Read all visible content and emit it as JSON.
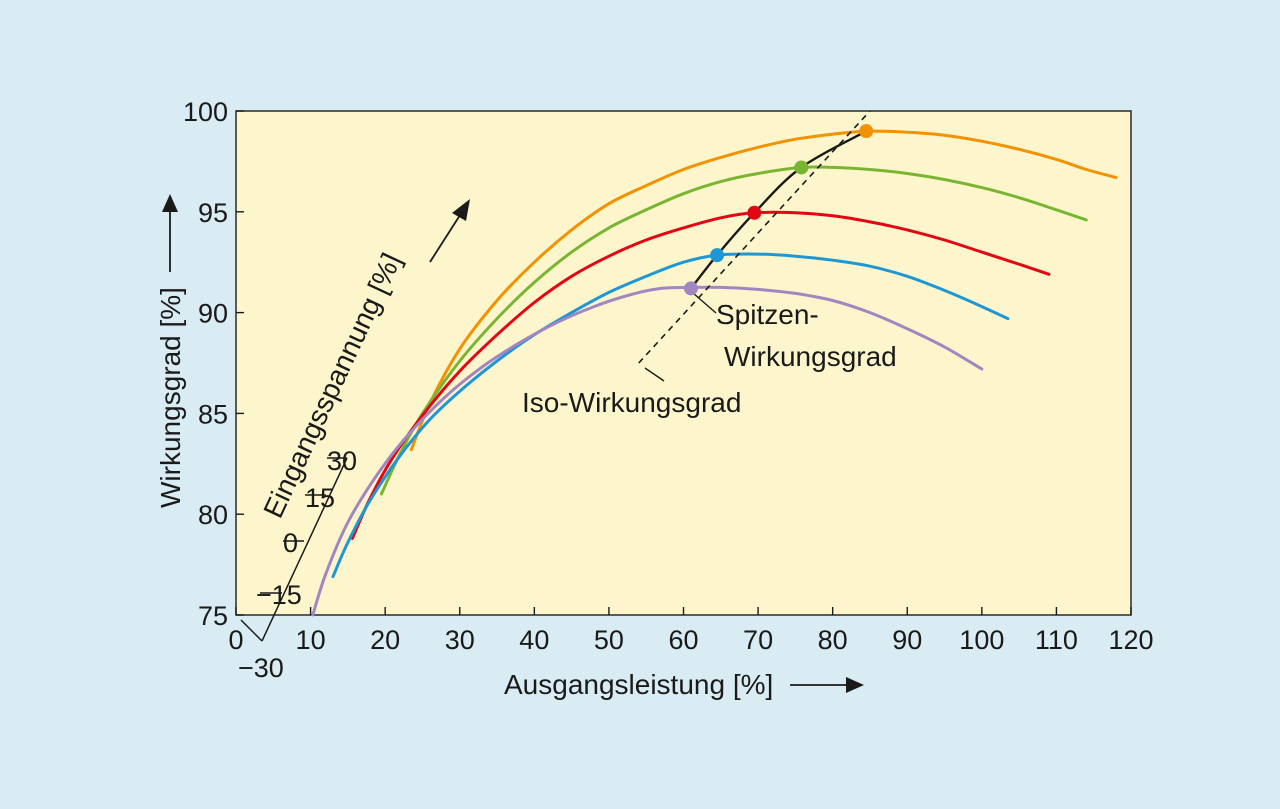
{
  "chart_data": {
    "type": "line",
    "xlabel": "Ausgangsleistung [%]",
    "ylabel": "Wirkungsgrad [%]",
    "xlim": [
      0,
      120
    ],
    "ylim": [
      75,
      100
    ],
    "x_ticks": [
      "0",
      "10",
      "20",
      "30",
      "40",
      "50",
      "60",
      "70",
      "80",
      "90",
      "100",
      "110",
      "120"
    ],
    "y_ticks": [
      "75",
      "80",
      "85",
      "90",
      "95",
      "100"
    ],
    "grid": false,
    "diagonal_axis": {
      "label": "Eingangsspannung [%]",
      "ticks": [
        "−30",
        "−15",
        "0",
        "15",
        "30"
      ]
    },
    "series": [
      {
        "color": "#f39200",
        "x": [
          23.5,
          26,
          30,
          35,
          40,
          45,
          50,
          55,
          60,
          65,
          70,
          75,
          80,
          84.5,
          90,
          95,
          100,
          105,
          110,
          114,
          118
        ],
        "y": [
          83.2,
          85.5,
          88.2,
          90.6,
          92.5,
          94.1,
          95.4,
          96.3,
          97.1,
          97.7,
          98.2,
          98.6,
          98.85,
          99.0,
          98.95,
          98.8,
          98.5,
          98.1,
          97.6,
          97.1,
          96.7
        ]
      },
      {
        "color": "#7ab532",
        "x": [
          19.5,
          22,
          25,
          30,
          35,
          40,
          45,
          50,
          55,
          60,
          65,
          70,
          75.8,
          80,
          85,
          90,
          95,
          100,
          105,
          110,
          114
        ],
        "y": [
          81.0,
          83.0,
          85.0,
          87.6,
          89.7,
          91.5,
          93.0,
          94.2,
          95.1,
          95.9,
          96.5,
          96.9,
          97.2,
          97.2,
          97.1,
          96.9,
          96.6,
          96.2,
          95.7,
          95.1,
          94.6
        ]
      },
      {
        "color": "#e30613",
        "x": [
          15.6,
          18,
          21,
          25,
          30,
          35,
          40,
          45,
          50,
          55,
          60,
          65,
          69.5,
          75,
          80,
          85,
          90,
          95,
          100,
          105,
          109
        ],
        "y": [
          78.8,
          80.8,
          82.8,
          84.9,
          87.1,
          88.9,
          90.5,
          91.8,
          92.8,
          93.6,
          94.2,
          94.7,
          94.95,
          94.95,
          94.8,
          94.5,
          94.1,
          93.6,
          93.0,
          92.4,
          91.9
        ]
      },
      {
        "color": "#1e97d4",
        "x": [
          13,
          15,
          18,
          22,
          26,
          30,
          35,
          40,
          45,
          50,
          55,
          60,
          64.5,
          70,
          75,
          80,
          85,
          90,
          95,
          100,
          103.5
        ],
        "y": [
          76.9,
          78.6,
          80.7,
          82.9,
          84.7,
          86.1,
          87.6,
          88.9,
          90.0,
          91.0,
          91.8,
          92.5,
          92.85,
          92.9,
          92.8,
          92.6,
          92.3,
          91.8,
          91.1,
          90.3,
          89.7
        ]
      },
      {
        "color": "#a286c0",
        "x": [
          10.3,
          12,
          15,
          19,
          23,
          28,
          33,
          38,
          43,
          48,
          53,
          57,
          61,
          65,
          70,
          75,
          80,
          85,
          90,
          95,
          100
        ],
        "y": [
          75.0,
          77.0,
          79.6,
          82.0,
          83.9,
          85.8,
          87.3,
          88.5,
          89.5,
          90.3,
          90.9,
          91.2,
          91.25,
          91.25,
          91.15,
          90.95,
          90.6,
          90.0,
          89.2,
          88.3,
          87.2
        ]
      }
    ],
    "peak_points": [
      {
        "color": "#f39200",
        "x": 84.5,
        "y": 99.0
      },
      {
        "color": "#7ab532",
        "x": 75.8,
        "y": 97.2
      },
      {
        "color": "#e30613",
        "x": 69.5,
        "y": 94.95
      },
      {
        "color": "#1e97d4",
        "x": 64.5,
        "y": 92.85
      },
      {
        "color": "#a286c0",
        "x": 61.0,
        "y": 91.2
      }
    ],
    "peak_efficiency_curve": {
      "label": "Spitzen-Wirkungsgrad",
      "x": [
        61.0,
        64.5,
        69.5,
        75.8,
        84.5
      ],
      "y": [
        91.2,
        92.85,
        94.95,
        97.2,
        99.0
      ]
    },
    "iso_efficiency_line": {
      "label": "Iso-Wirkungsgrad",
      "x": [
        54,
        85
      ],
      "y": [
        87.5,
        100
      ]
    },
    "annotations": [
      {
        "text": "Spitzen-",
        "line": 1
      },
      {
        "text": "Wirkungsgrad",
        "line": 2
      },
      {
        "text": "Iso-Wirkungsgrad",
        "line": 1
      }
    ]
  }
}
